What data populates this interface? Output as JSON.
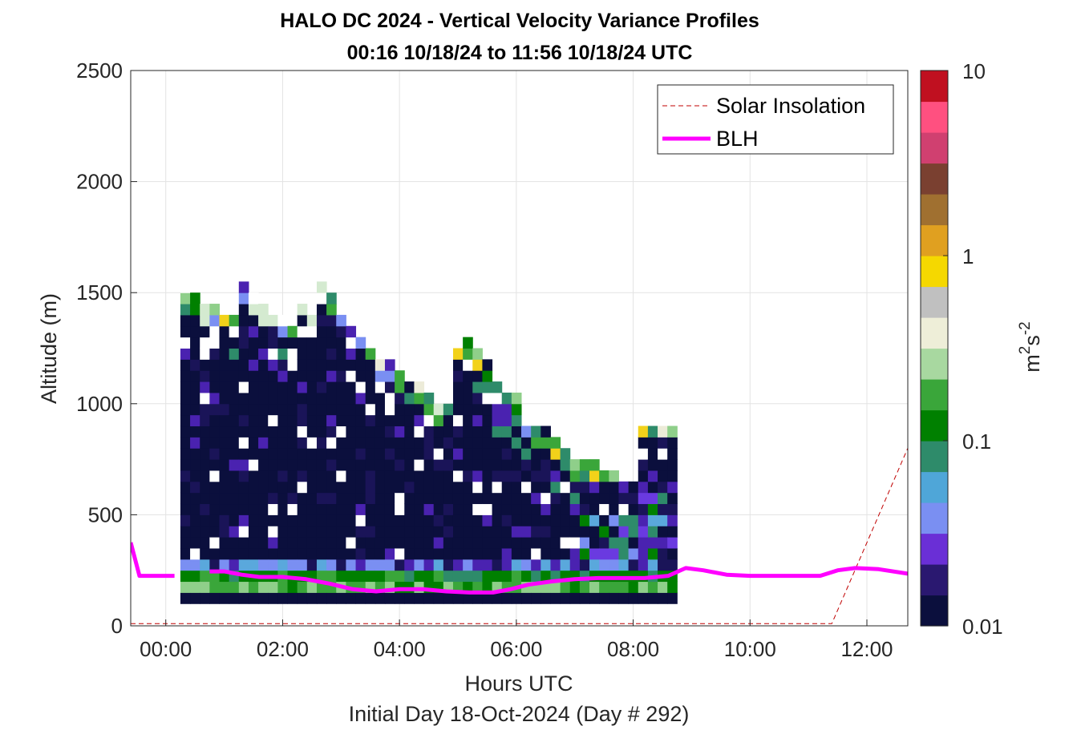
{
  "chart_data": {
    "type": "heatmap",
    "title_line1": "HALO DC 2024 - Vertical Velocity Variance Profiles",
    "title_line2": "00:16 10/18/24 to 11:56 10/18/24  UTC",
    "xlabel": "Hours UTC",
    "xlabel2": "Initial Day 18-Oct-2024 (Day # 292)",
    "ylabel": "Altitude (m)",
    "xlim": [
      -0.6,
      12.7
    ],
    "ylim": [
      0,
      2500
    ],
    "x_ticks": [
      0,
      2,
      4,
      6,
      8,
      10,
      12
    ],
    "x_tick_labels": [
      "00:00",
      "02:00",
      "04:00",
      "06:00",
      "08:00",
      "10:00",
      "12:00"
    ],
    "y_ticks": [
      0,
      500,
      1000,
      1500,
      2000,
      2500
    ],
    "y_tick_labels": [
      "0",
      "500",
      "1000",
      "1500",
      "2000",
      "2500"
    ],
    "grid": true,
    "colorbar": {
      "scale": "log",
      "range": [
        0.01,
        10
      ],
      "ticks": [
        0.01,
        0.1,
        1,
        10
      ],
      "tick_labels": [
        "0.01",
        "0.1",
        "1",
        "10"
      ],
      "label_base": "m",
      "label_exp1": "2",
      "label_mid": "s",
      "label_exp2": "-2",
      "colors": [
        "#0b0f3d",
        "#2a1870",
        "#6a2fd6",
        "#7a8ff2",
        "#4fa6d8",
        "#2e8b6a",
        "#008000",
        "#3aa63a",
        "#a8d8a0",
        "#eeeed8",
        "#c0c0c0",
        "#f5d800",
        "#e0a020",
        "#a07030",
        "#7a4030",
        "#d04070",
        "#ff5080",
        "#c01020"
      ]
    },
    "series": [
      {
        "name": "Solar Insolation",
        "style": "dashed",
        "color": "#c00000",
        "x": [
          -0.6,
          11.4,
          12.7
        ],
        "y": [
          10,
          10,
          800
        ]
      },
      {
        "name": "BLH",
        "style": "solid",
        "color": "#ff00ff",
        "x": [
          -0.6,
          -0.45,
          -0.2,
          0.15,
          0.5,
          0.75,
          1.0,
          1.3,
          1.6,
          2.0,
          2.4,
          2.8,
          3.2,
          3.6,
          4.0,
          4.4,
          4.8,
          5.2,
          5.6,
          5.9,
          6.2,
          6.6,
          7.0,
          7.4,
          7.8,
          8.2,
          8.6,
          8.9,
          9.2,
          9.6,
          10.0,
          10.4,
          10.8,
          11.2,
          11.5,
          11.8,
          12.2,
          12.7
        ],
        "y": [
          375,
          225,
          225,
          225,
          null,
          245,
          245,
          230,
          220,
          220,
          210,
          190,
          165,
          155,
          165,
          165,
          155,
          150,
          150,
          165,
          185,
          200,
          210,
          215,
          215,
          215,
          225,
          260,
          250,
          230,
          225,
          225,
          225,
          225,
          250,
          260,
          255,
          235
        ]
      }
    ],
    "heatmap": {
      "x_start": 0.25,
      "bin_hours": 0.1667,
      "bin_alt": 50,
      "columns_note": "variance values per altitude bin, m^2 s^-2"
    },
    "legend_position": "top-right"
  }
}
